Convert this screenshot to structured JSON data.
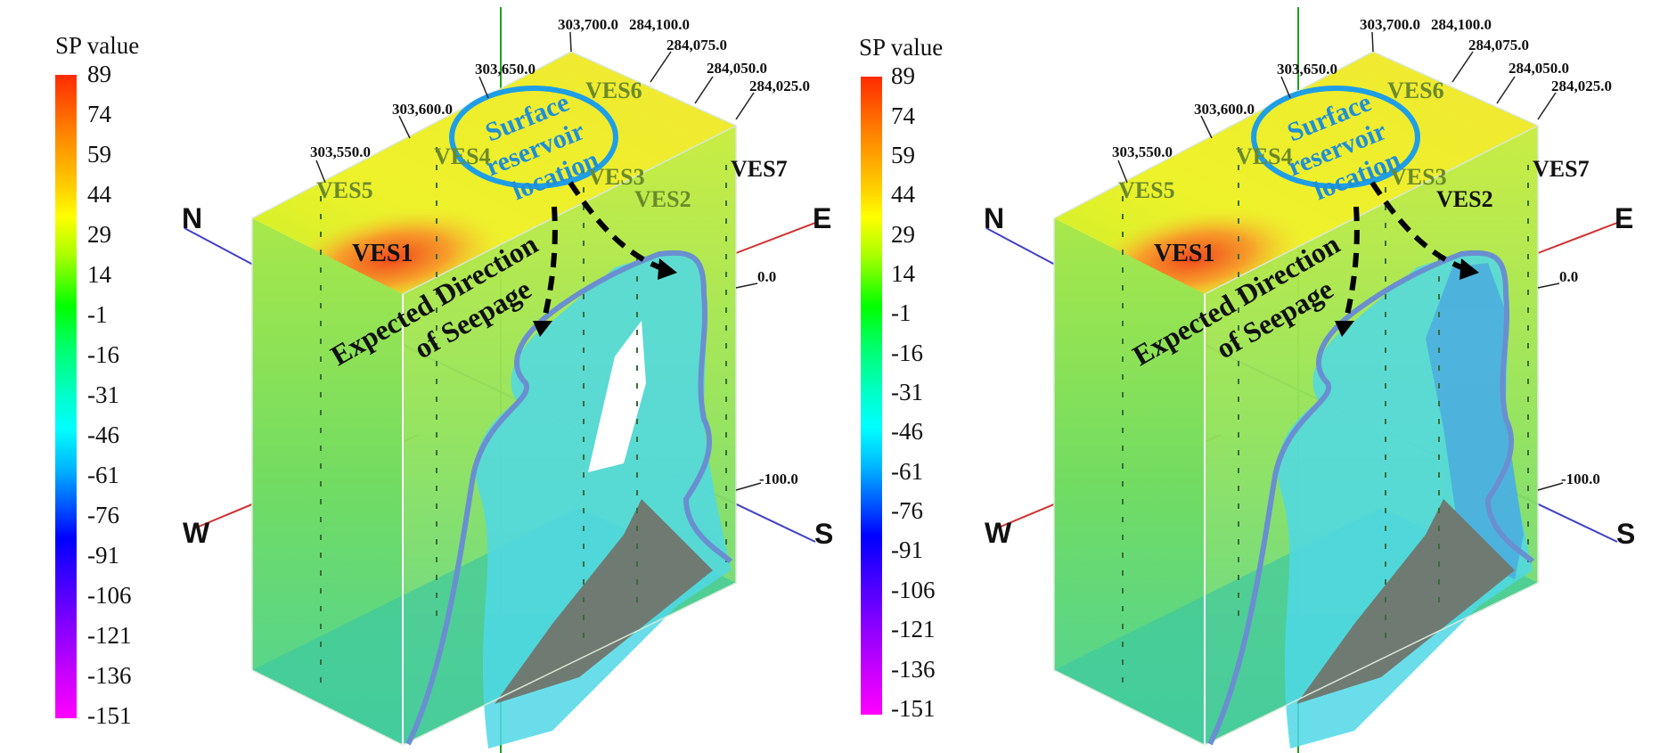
{
  "legend": {
    "title": "SP value",
    "ticks": [
      "89",
      "74",
      "59",
      "44",
      "29",
      "14",
      "-1",
      "-16",
      "-31",
      "-46",
      "-61",
      "-76",
      "-91",
      "-106",
      "-121",
      "-136",
      "-151"
    ]
  },
  "directions": {
    "north": "N",
    "east": "E",
    "west": "W",
    "south": "S"
  },
  "coords": {
    "x1": "303,550.0",
    "x2": "303,600.0",
    "x3": "303,650.0",
    "x4": "303,700.0",
    "y1": "284,100.0",
    "y2": "284,075.0",
    "y3": "284,050.0",
    "y4": "284,025.0"
  },
  "depths": {
    "d0": "0.0",
    "d100": "-100.0"
  },
  "ves": {
    "v1": "VES1",
    "v2": "VES2",
    "v3": "VES3",
    "v4": "VES4",
    "v5": "VES5",
    "v6": "VES6",
    "v7": "VES7"
  },
  "annotations": {
    "reservoir": [
      "Surface",
      "reservoir",
      "location"
    ],
    "seepage": [
      "Expected Direction",
      "of Seepage"
    ]
  },
  "colors": {
    "outline": "#6a8fd0",
    "reservoir_ellipse": "#1e9ee6",
    "dashed_arrow": "#000000",
    "anomaly": "#4fd8e6"
  }
}
